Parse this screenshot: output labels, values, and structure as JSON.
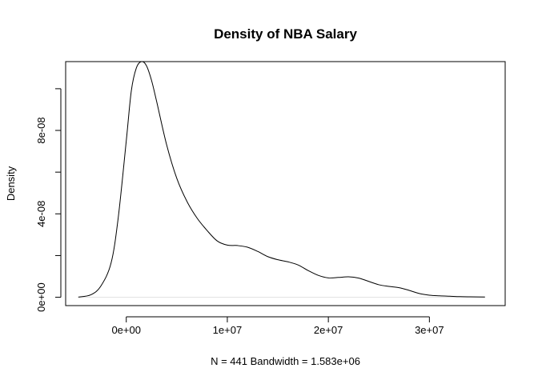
{
  "chart_data": {
    "type": "line",
    "title": "Density of NBA Salary",
    "xlabel": "N = 441   Bandwidth = 1.583e+06",
    "ylabel": "Density",
    "xlim": [
      -6000000,
      37500000
    ],
    "ylim": [
      -4e-09,
      1.13e-07
    ],
    "x_ticks": [
      {
        "value": 0,
        "label": "0e+00"
      },
      {
        "value": 10000000,
        "label": "1e+07"
      },
      {
        "value": 20000000,
        "label": "2e+07"
      },
      {
        "value": 30000000,
        "label": "3e+07"
      }
    ],
    "y_ticks": [
      {
        "value": 0,
        "label": "0e+00"
      },
      {
        "value": 2e-08,
        "label": ""
      },
      {
        "value": 4e-08,
        "label": "4e-08"
      },
      {
        "value": 6e-08,
        "label": ""
      },
      {
        "value": 8e-08,
        "label": "8e-08"
      },
      {
        "value": 1e-07,
        "label": ""
      }
    ],
    "series": [
      {
        "x": [
          -4750000,
          -3500000,
          -2500000,
          -1500000,
          -800000,
          0,
          500000,
          1000000,
          1500000,
          2000000,
          2500000,
          3000000,
          4000000,
          5000000,
          6000000,
          7000000,
          8000000,
          9000000,
          10000000,
          11000000,
          12000000,
          13000000,
          14000000,
          15000000,
          16000000,
          17000000,
          18000000,
          19000000,
          20000000,
          21000000,
          22000000,
          23000000,
          24000000,
          25000000,
          26000000,
          27000000,
          28000000,
          29000000,
          30000000,
          31000000,
          32000000,
          33000000,
          34000000,
          35500000
        ],
        "y": [
          1e-10,
          1.2e-09,
          5.5e-09,
          1.65e-08,
          3.8e-08,
          7.5e-08,
          9.9e-08,
          1.1e-07,
          1.13e-07,
          1.11e-07,
          1.04e-07,
          9.4e-08,
          7.3e-08,
          5.7e-08,
          4.6e-08,
          3.8e-08,
          3.2e-08,
          2.7e-08,
          2.5e-08,
          2.48e-08,
          2.4e-08,
          2.2e-08,
          1.95e-08,
          1.8e-08,
          1.7e-08,
          1.55e-08,
          1.28e-08,
          1.05e-08,
          9.3e-09,
          9.5e-09,
          9.8e-09,
          9.2e-09,
          7.6e-09,
          6e-09,
          5.2e-09,
          4.6e-09,
          3.3e-09,
          1.8e-09,
          1e-09,
          7e-10,
          5e-10,
          3e-10,
          2e-10,
          1e-10
        ]
      }
    ],
    "grid": false,
    "legend": "none"
  }
}
